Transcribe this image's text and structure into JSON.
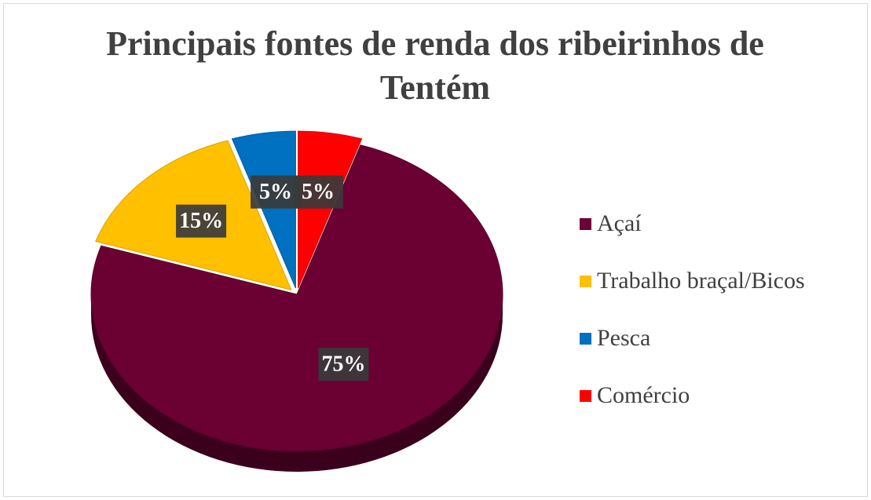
{
  "chart_data": {
    "type": "pie",
    "title": "Principais fontes de renda dos ribeirinhos de Tentém",
    "categories": [
      "Açaí",
      "Trabalho braçal/Bicos",
      "Pesca",
      "Comércio"
    ],
    "values": [
      75,
      15,
      5,
      5
    ],
    "value_labels": [
      "75%",
      "15%",
      "5%",
      "5%"
    ],
    "colors": [
      "#6b0033",
      "#ffc000",
      "#0070c0",
      "#ff0000"
    ],
    "legend": "right"
  }
}
